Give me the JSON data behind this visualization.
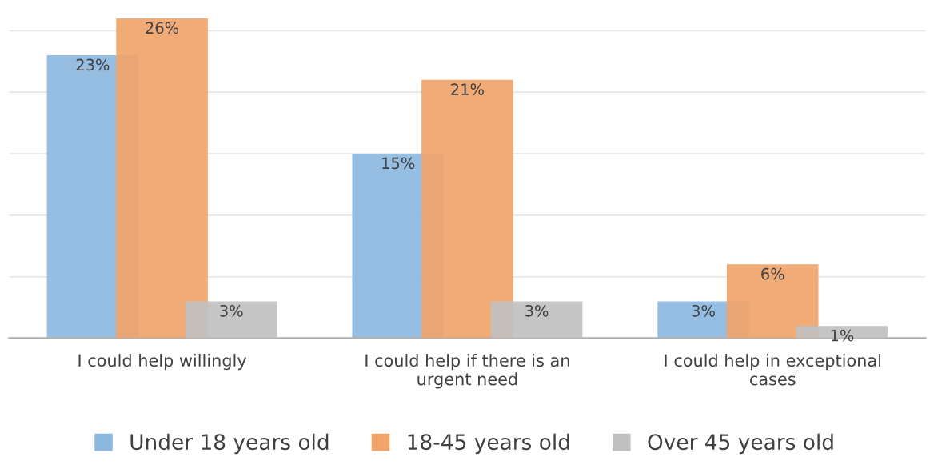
{
  "chart_data": {
    "type": "bar",
    "categories": [
      "I could help willingly",
      "I could help if there is an\nurgent need",
      "I could help in exceptional\ncases"
    ],
    "series": [
      {
        "name": "Under 18 years old",
        "color": "#8cb8e0",
        "values": [
          23,
          15,
          3
        ],
        "value_labels": [
          "23%",
          "15%",
          "3%"
        ]
      },
      {
        "name": "18-45 years old",
        "color": "#f0a46a",
        "values": [
          26,
          21,
          6
        ],
        "value_labels": [
          "26%",
          "21%",
          "6%"
        ]
      },
      {
        "name": "Over 45 years old",
        "color": "#c0c0c0",
        "values": [
          3,
          3,
          1
        ],
        "value_labels": [
          "3%",
          "3%",
          "1%"
        ]
      }
    ],
    "tick_labels": "x",
    "grid": "y",
    "legend": "bottom"
  }
}
